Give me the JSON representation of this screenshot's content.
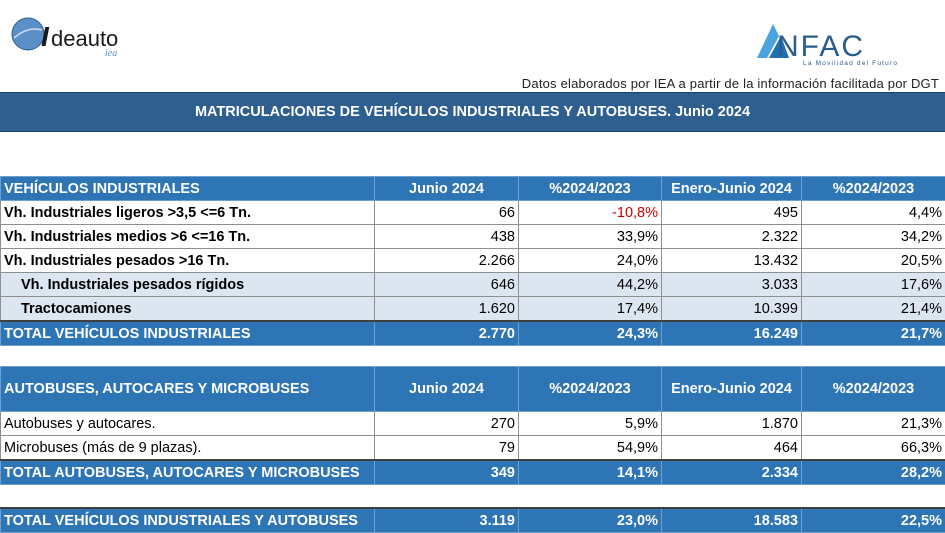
{
  "header": {
    "left_logo_text": "Ideauto",
    "left_logo_sub": "IEA",
    "right_logo_text": "ANFAC",
    "right_logo_tagline": "La Movilidad del Futuro",
    "source_note": "Datos elaborados por IEA a partir de la información facilitada por DGT",
    "title": "MATRICULACIONES DE VEHÍCULOS INDUSTRIALES Y AUTOBUSES.  Junio 2024"
  },
  "industrial": {
    "headers": [
      "VEHÍCULOS INDUSTRIALES",
      "Junio 2024",
      "%2024/2023",
      "Enero-Junio 2024",
      "%2024/2023"
    ],
    "rows": [
      {
        "label": "Vh. Industriales ligeros >3,5 <=6 Tn.",
        "jun": "66",
        "pct_jun": "-10,8%",
        "ytd": "495",
        "pct_ytd": "4,4%"
      },
      {
        "label": "Vh. Industriales medios >6  <=16 Tn.",
        "jun": "438",
        "pct_jun": "33,9%",
        "ytd": "2.322",
        "pct_ytd": "34,2%"
      },
      {
        "label": "Vh. Industriales  pesados >16 Tn.",
        "jun": "2.266",
        "pct_jun": "24,0%",
        "ytd": "13.432",
        "pct_ytd": "20,5%"
      },
      {
        "label": "Vh. Industriales pesados rígidos",
        "jun": "646",
        "pct_jun": "44,2%",
        "ytd": "3.033",
        "pct_ytd": "17,6%"
      },
      {
        "label": "Tractocamiones",
        "jun": "1.620",
        "pct_jun": "17,4%",
        "ytd": "10.399",
        "pct_ytd": "21,4%"
      }
    ],
    "total": {
      "label": "TOTAL VEHÍCULOS INDUSTRIALES",
      "jun": "2.770",
      "pct_jun": "24,3%",
      "ytd": "16.249",
      "pct_ytd": "21,7%"
    }
  },
  "buses": {
    "headers": [
      "AUTOBUSES, AUTOCARES Y MICROBUSES",
      "Junio 2024",
      "%2024/2023",
      "Enero-Junio 2024",
      "%2024/2023"
    ],
    "rows": [
      {
        "label": "Autobuses y autocares.",
        "jun": "270",
        "pct_jun": "5,9%",
        "ytd": "1.870",
        "pct_ytd": "21,3%"
      },
      {
        "label": "Microbuses (más de 9 plazas).",
        "jun": "79",
        "pct_jun": "54,9%",
        "ytd": "464",
        "pct_ytd": "66,3%"
      }
    ],
    "total": {
      "label": "TOTAL AUTOBUSES, AUTOCARES Y MICROBUSES",
      "jun": "349",
      "pct_jun": "14,1%",
      "ytd": "2.334",
      "pct_ytd": "28,2%"
    }
  },
  "grand_total": {
    "label": "TOTAL VEHÍCULOS INDUSTRIALES Y AUTOBUSES",
    "jun": "3.119",
    "pct_jun": "23,0%",
    "ytd": "18.583",
    "pct_ytd": "22,5%"
  },
  "colors": {
    "header_blue": "#2e75b6",
    "banner_blue": "#2e5f8f",
    "sub_row": "#dce6f1",
    "negative": "#d00000"
  }
}
